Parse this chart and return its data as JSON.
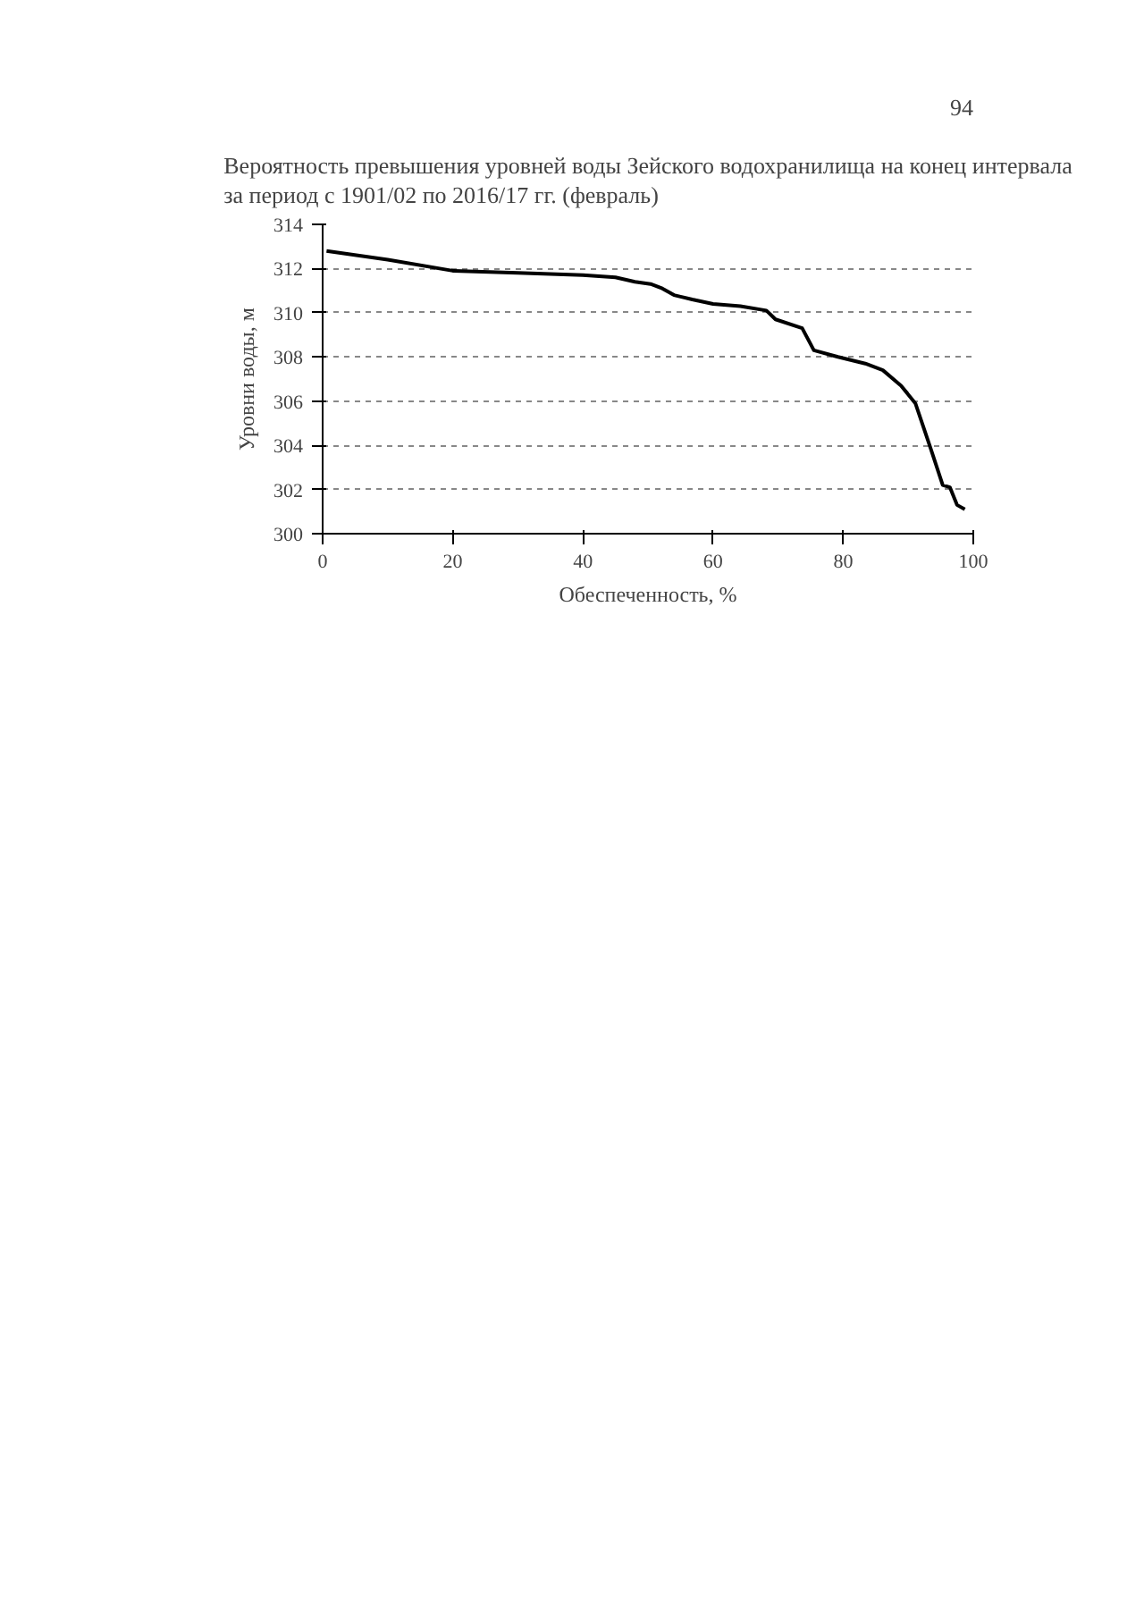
{
  "chart_data": {
    "type": "line",
    "title": "Вероятность превышения уровней воды Зейского водохранилища на конец интервала\nза период с 1901/02 по 2016/17 гг. (февраль)",
    "xlabel": "Обеспеченность, %",
    "ylabel": "Уровни воды, м",
    "annotations": [
      "94"
    ],
    "x": [
      0.6,
      10,
      20,
      30,
      40,
      45,
      48,
      50.4,
      52.2,
      54,
      56.8,
      60,
      64.2,
      68.2,
      69.6,
      73.7,
      75.5,
      79.2,
      83.4,
      86.1,
      88.9,
      91.1,
      93.4,
      95.3,
      96.4,
      97.5,
      98.7
    ],
    "series": [
      {
        "color": "#000000",
        "values": [
          312.8,
          312.4,
          311.9,
          311.8,
          311.7,
          311.6,
          311.4,
          311.3,
          311.1,
          310.8,
          310.6,
          310.4,
          310.3,
          310.1,
          309.7,
          309.3,
          308.3,
          308.0,
          307.7,
          307.4,
          306.7,
          305.9,
          303.9,
          302.2,
          302.1,
          301.3,
          301.1
        ]
      }
    ],
    "xlim": [
      0,
      100
    ],
    "xticks": [
      0,
      20,
      40,
      60,
      80,
      100
    ],
    "ylim": [
      300,
      314
    ],
    "yticks": [
      300,
      302,
      304,
      306,
      308,
      310,
      312,
      314
    ],
    "grid": "y",
    "marker": "none",
    "line_style": "solid"
  }
}
